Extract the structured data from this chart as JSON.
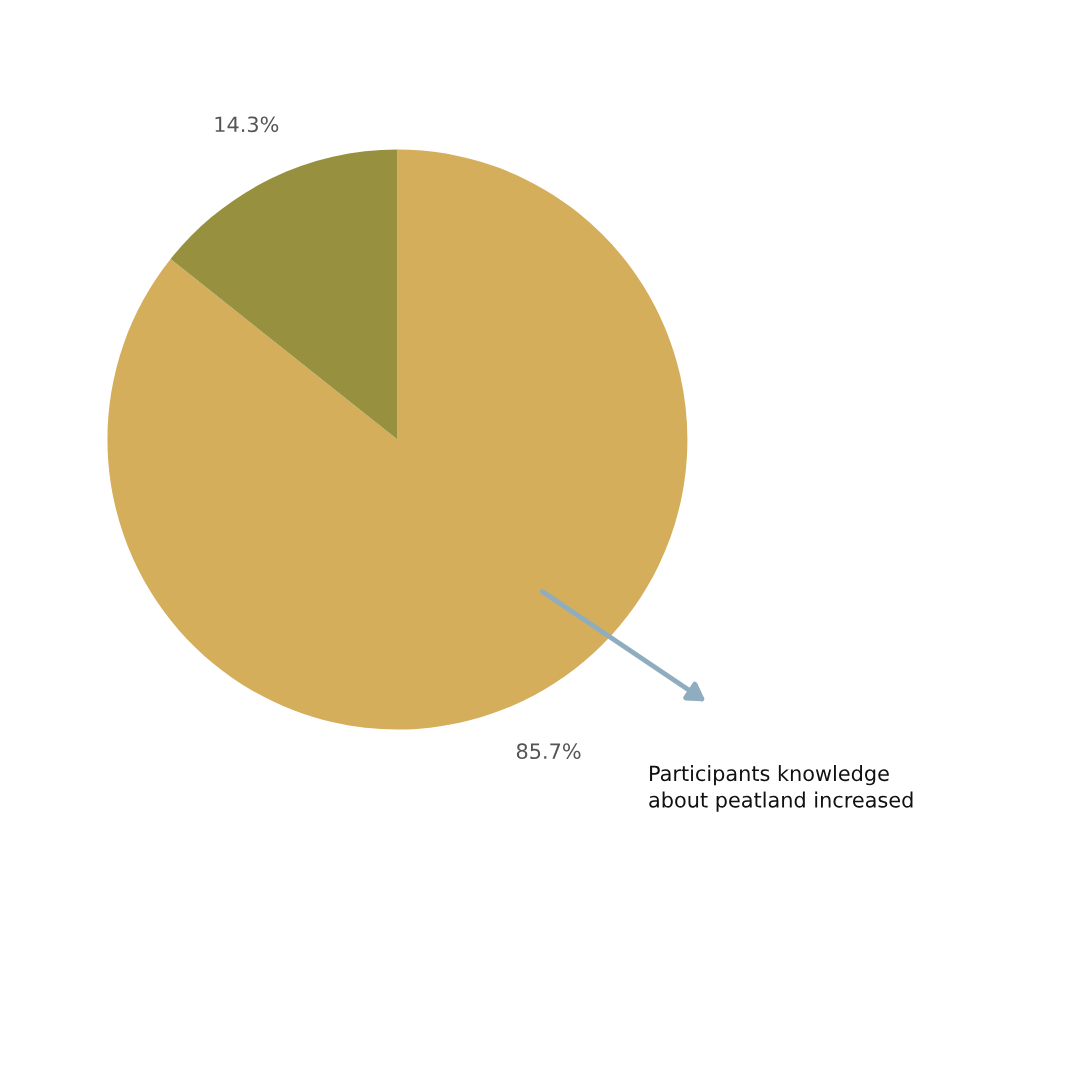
{
  "chart_data": {
    "type": "pie",
    "categories": [
      null,
      null
    ],
    "values": [
      85.7,
      14.3
    ],
    "colors": [
      "#d4ae5a",
      "#97913f"
    ],
    "value_labels": [
      "85.7%",
      "14.3%"
    ],
    "annotations": [
      "Participants knowledge\nabout peatland increased"
    ]
  }
}
